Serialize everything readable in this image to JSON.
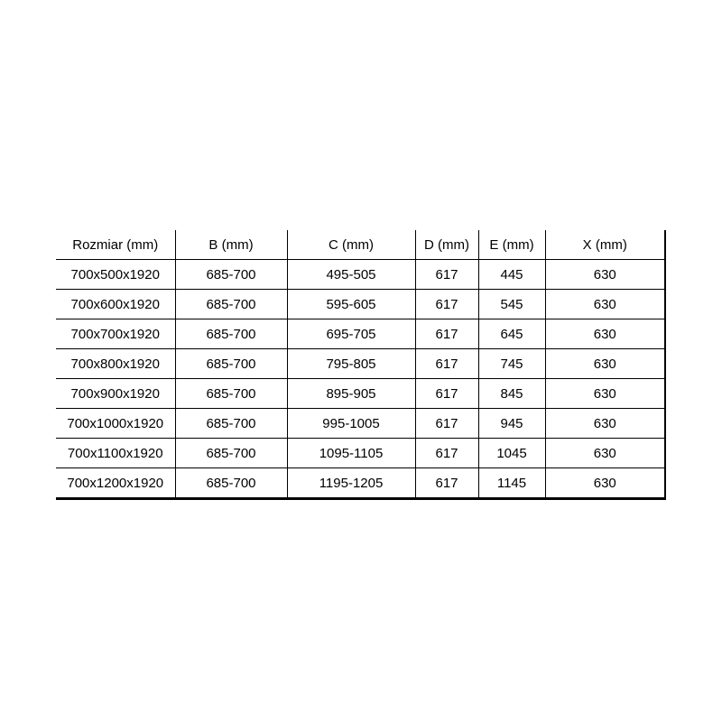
{
  "style": {
    "background_color": "#ffffff",
    "grid_color": "#000000",
    "text_color": "#000000"
  },
  "chart_data": {
    "type": "table",
    "title": "",
    "columns": [
      "Rozmiar (mm)",
      "B (mm)",
      "C (mm)",
      "D (mm)",
      "E (mm)",
      "X (mm)"
    ],
    "rows": [
      [
        "700x500x1920",
        "685-700",
        "495-505",
        "617",
        "445",
        "630"
      ],
      [
        "700x600x1920",
        "685-700",
        "595-605",
        "617",
        "545",
        "630"
      ],
      [
        "700x700x1920",
        "685-700",
        "695-705",
        "617",
        "645",
        "630"
      ],
      [
        "700x800x1920",
        "685-700",
        "795-805",
        "617",
        "745",
        "630"
      ],
      [
        "700x900x1920",
        "685-700",
        "895-905",
        "617",
        "845",
        "630"
      ],
      [
        "700x1000x1920",
        "685-700",
        "995-1005",
        "617",
        "945",
        "630"
      ],
      [
        "700x1100x1920",
        "685-700",
        "1095-1105",
        "617",
        "1045",
        "630"
      ],
      [
        "700x1200x1920",
        "685-700",
        "1195-1205",
        "617",
        "1145",
        "630"
      ]
    ]
  }
}
